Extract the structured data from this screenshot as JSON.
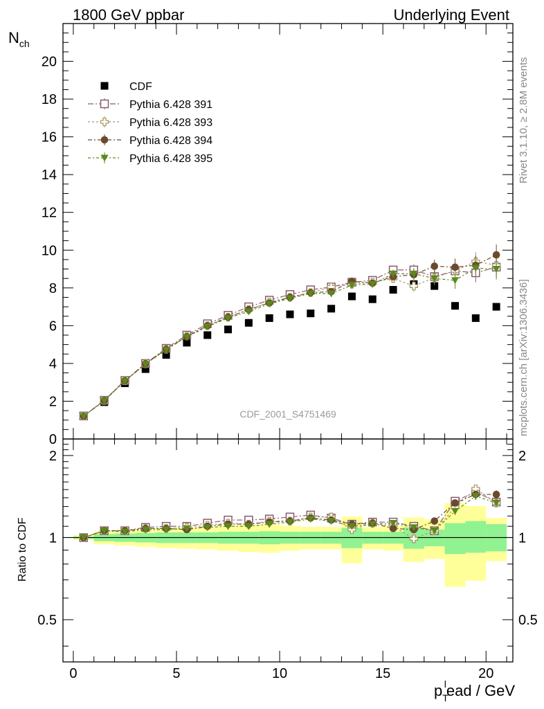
{
  "header": {
    "left_title": "1800 GeV ppbar",
    "right_title": "Underlying Event"
  },
  "side": {
    "rivet_label": "Rivet 3.1.10, ≥ 2.8M events",
    "mcplots_label": "mcplots.cern.ch [arXiv:1306.3436]"
  },
  "chart_data": [
    {
      "type": "scatter",
      "title": "",
      "ylabel": "N_ch",
      "xlabel": "",
      "analysis_id": "CDF_2001_S4751469",
      "xlim": [
        -0.5,
        21.3
      ],
      "ylim": [
        0,
        22
      ],
      "y_ticks": [
        0,
        2,
        4,
        6,
        8,
        10,
        12,
        14,
        16,
        18,
        20
      ],
      "legend_position": "top-left",
      "x": [
        0.5,
        1.5,
        2.5,
        3.5,
        4.5,
        5.5,
        6.5,
        7.5,
        8.5,
        9.5,
        10.5,
        11.5,
        12.5,
        13.5,
        14.5,
        15.5,
        16.5,
        17.5,
        18.5,
        19.5,
        20.5
      ],
      "series": [
        {
          "name": "CDF",
          "color": "#000000",
          "marker": "filled-square",
          "values": [
            1.2,
            1.95,
            2.95,
            3.7,
            4.45,
            5.1,
            5.5,
            5.8,
            6.15,
            6.4,
            6.6,
            6.65,
            6.9,
            7.55,
            7.4,
            7.9,
            8.2,
            8.1,
            7.05,
            6.4,
            7.0
          ]
        },
        {
          "name": "Pythia 6.428 391",
          "color": "#8a5a6e",
          "marker": "open-square",
          "values": [
            1.22,
            2.05,
            3.1,
            4.0,
            4.8,
            5.5,
            6.1,
            6.55,
            7.0,
            7.35,
            7.65,
            7.9,
            8.05,
            8.3,
            8.4,
            8.95,
            8.95,
            8.6,
            8.9,
            8.8,
            9.1
          ]
        },
        {
          "name": "Pythia 6.428 393",
          "color": "#a89a6a",
          "marker": "open-cross",
          "values": [
            1.21,
            2.03,
            3.08,
            3.98,
            4.75,
            5.45,
            6.0,
            6.45,
            6.85,
            7.25,
            7.5,
            7.75,
            8.05,
            8.2,
            8.3,
            8.5,
            8.1,
            8.55,
            8.9,
            9.4,
            9.2
          ]
        },
        {
          "name": "Pythia 6.428 394",
          "color": "#6b4a2e",
          "marker": "filled-circle",
          "values": [
            1.21,
            2.04,
            3.08,
            3.98,
            4.75,
            5.42,
            6.0,
            6.45,
            6.85,
            7.2,
            7.5,
            7.75,
            7.8,
            8.35,
            8.25,
            8.6,
            8.7,
            9.15,
            9.1,
            9.2,
            9.75
          ]
        },
        {
          "name": "Pythia 6.428 395",
          "color": "#5a8a1a",
          "marker": "filled-triangle-down",
          "values": [
            1.2,
            2.02,
            3.06,
            3.96,
            4.72,
            5.4,
            5.95,
            6.4,
            6.75,
            7.15,
            7.45,
            7.7,
            7.7,
            8.15,
            8.2,
            8.75,
            8.75,
            8.5,
            8.4,
            9.05,
            9.0
          ]
        }
      ]
    },
    {
      "type": "scatter",
      "title": "",
      "ylabel": "Ratio to CDF",
      "xlabel": "p_T^lead / GeV",
      "xlim": [
        -0.5,
        21.3
      ],
      "ylim": [
        0.35,
        2.3
      ],
      "y_ticks": [
        0.5,
        1,
        2
      ],
      "x_ticks": [
        0,
        5,
        10,
        15,
        20
      ],
      "reference": 1,
      "x": [
        0.5,
        1.5,
        2.5,
        3.5,
        4.5,
        5.5,
        6.5,
        7.5,
        8.5,
        9.5,
        10.5,
        11.5,
        12.5,
        13.5,
        14.5,
        15.5,
        16.5,
        17.5,
        18.5,
        19.5,
        20.5
      ],
      "band_inner": {
        "color": "#90f290",
        "low": [
          0.99,
          0.97,
          0.965,
          0.96,
          0.955,
          0.955,
          0.955,
          0.95,
          0.95,
          0.945,
          0.95,
          0.95,
          0.95,
          0.915,
          0.95,
          0.95,
          0.91,
          0.93,
          0.87,
          0.88,
          0.89
        ],
        "high": [
          1.01,
          1.03,
          1.035,
          1.04,
          1.045,
          1.045,
          1.045,
          1.05,
          1.05,
          1.055,
          1.05,
          1.05,
          1.05,
          1.085,
          1.05,
          1.05,
          1.09,
          1.07,
          1.13,
          1.15,
          1.12
        ]
      },
      "band_outer": {
        "color": "#ffff99",
        "low": [
          0.98,
          0.945,
          0.935,
          0.925,
          0.915,
          0.91,
          0.905,
          0.895,
          0.885,
          0.88,
          0.895,
          0.905,
          0.905,
          0.805,
          0.905,
          0.895,
          0.815,
          0.835,
          0.66,
          0.695,
          0.82
        ],
        "high": [
          1.02,
          1.055,
          1.065,
          1.075,
          1.085,
          1.09,
          1.095,
          1.105,
          1.115,
          1.12,
          1.105,
          1.095,
          1.095,
          1.195,
          1.095,
          1.105,
          1.185,
          1.165,
          1.34,
          1.305,
          1.18
        ]
      },
      "series": [
        {
          "name": "Pythia 6.428 391",
          "color": "#8a5a6e",
          "marker": "open-square",
          "values": [
            1.0,
            1.06,
            1.06,
            1.09,
            1.1,
            1.1,
            1.13,
            1.16,
            1.16,
            1.17,
            1.19,
            1.21,
            1.18,
            1.12,
            1.14,
            1.14,
            1.1,
            1.06,
            1.36,
            1.47,
            1.35
          ]
        },
        {
          "name": "Pythia 6.428 393",
          "color": "#a89a6a",
          "marker": "open-cross",
          "values": [
            1.0,
            1.06,
            1.06,
            1.08,
            1.08,
            1.09,
            1.11,
            1.13,
            1.12,
            1.15,
            1.15,
            1.19,
            1.19,
            1.07,
            1.13,
            1.1,
            0.99,
            1.06,
            1.29,
            1.51,
            1.34
          ]
        },
        {
          "name": "Pythia 6.428 394",
          "color": "#6b4a2e",
          "marker": "filled-circle",
          "values": [
            1.0,
            1.06,
            1.06,
            1.08,
            1.08,
            1.07,
            1.1,
            1.12,
            1.12,
            1.14,
            1.15,
            1.18,
            1.16,
            1.12,
            1.13,
            1.08,
            1.07,
            1.15,
            1.34,
            1.44,
            1.44
          ]
        },
        {
          "name": "Pythia 6.428 395",
          "color": "#5a8a1a",
          "marker": "filled-triangle-down",
          "values": [
            1.0,
            1.06,
            1.05,
            1.07,
            1.07,
            1.08,
            1.09,
            1.1,
            1.1,
            1.12,
            1.14,
            1.17,
            1.15,
            1.1,
            1.12,
            1.13,
            1.09,
            1.06,
            1.25,
            1.42,
            1.34
          ]
        }
      ]
    }
  ]
}
